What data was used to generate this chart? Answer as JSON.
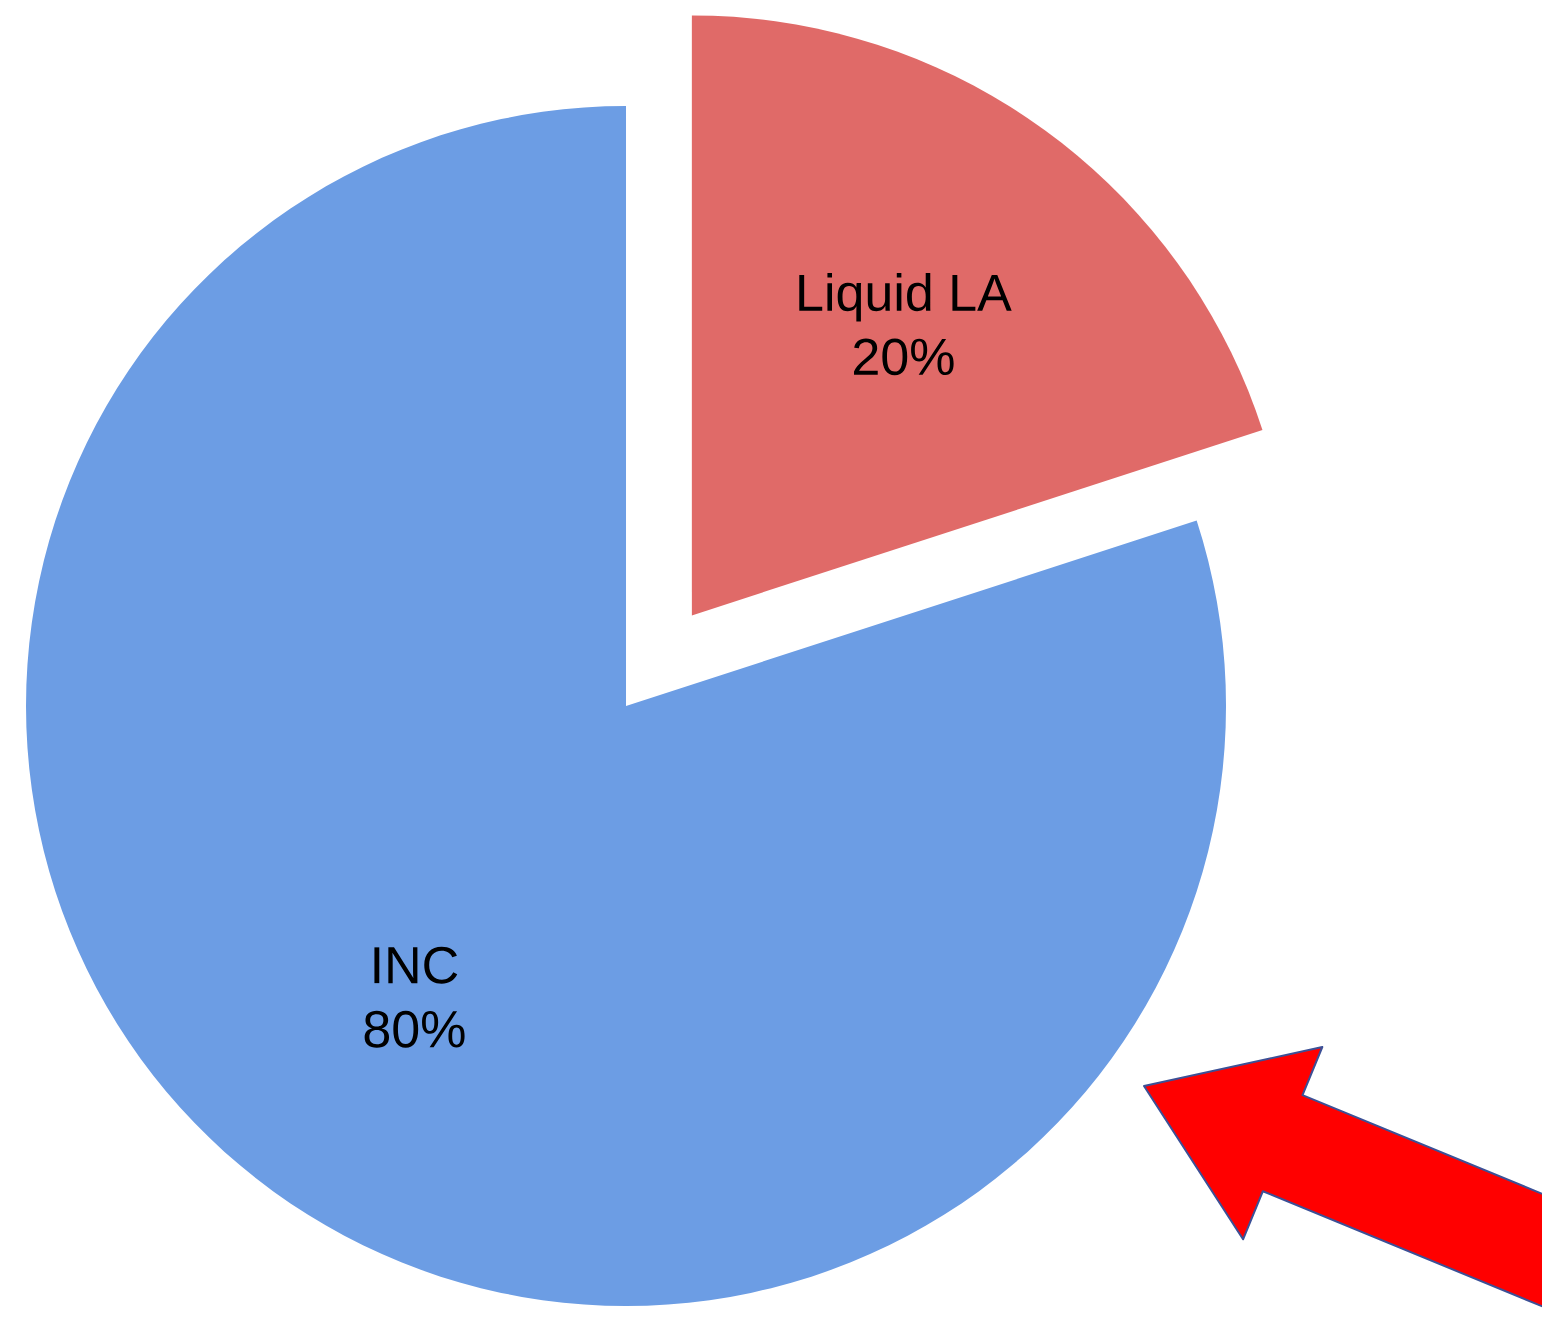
{
  "chart_data": {
    "type": "pie",
    "categories": [
      "Liquid LA",
      "INC"
    ],
    "values": [
      20,
      80
    ],
    "colors": [
      "#e06a68",
      "#6c9de4"
    ],
    "value_labels": [
      "20%",
      "80%"
    ]
  }
}
